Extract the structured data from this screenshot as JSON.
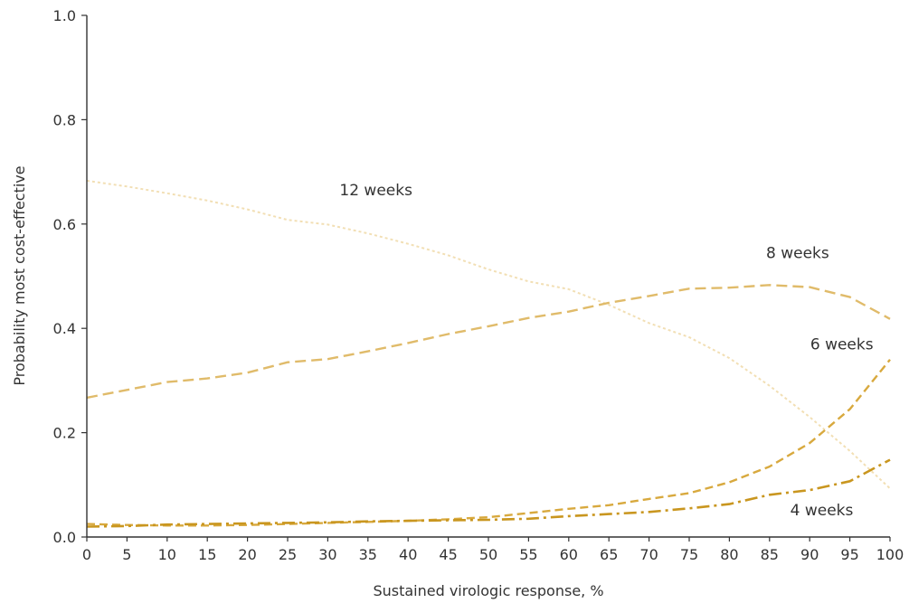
{
  "chart_data": {
    "type": "line",
    "xlabel": "Sustained virologic response, %",
    "ylabel": "Probability most cost-effective",
    "xlim": [
      0,
      100
    ],
    "ylim": [
      0,
      1.0
    ],
    "xticks": [
      "0",
      "5",
      "10",
      "15",
      "20",
      "25",
      "30",
      "35",
      "40",
      "45",
      "50",
      "55",
      "60",
      "65",
      "70",
      "75",
      "80",
      "85",
      "90",
      "95",
      "100"
    ],
    "yticks": [
      "0.0",
      "0.2",
      "0.4",
      "0.6",
      "0.8",
      "1.0"
    ],
    "grid": false,
    "legend": "none",
    "series": [
      {
        "name": "12 weeks",
        "color": "#f2dfb4",
        "x": [
          0,
          5,
          10,
          15,
          20,
          25,
          30,
          35,
          40,
          45,
          50,
          55,
          60,
          65,
          70,
          75,
          80,
          85,
          90,
          95,
          100
        ],
        "y": [
          0.683,
          0.672,
          0.659,
          0.645,
          0.628,
          0.608,
          0.599,
          0.582,
          0.562,
          0.54,
          0.513,
          0.49,
          0.475,
          0.445,
          0.41,
          0.383,
          0.343,
          0.29,
          0.23,
          0.165,
          0.093
        ]
      },
      {
        "name": "8 weeks",
        "color": "#e0bb6a",
        "x": [
          0,
          5,
          10,
          15,
          20,
          25,
          30,
          35,
          40,
          45,
          50,
          55,
          60,
          65,
          70,
          75,
          80,
          85,
          90,
          95,
          100
        ],
        "y": [
          0.267,
          0.282,
          0.297,
          0.304,
          0.315,
          0.335,
          0.341,
          0.356,
          0.372,
          0.389,
          0.404,
          0.42,
          0.432,
          0.449,
          0.462,
          0.476,
          0.478,
          0.483,
          0.479,
          0.46,
          0.418
        ]
      },
      {
        "name": "6 weeks",
        "color": "#d8a93e",
        "x": [
          0,
          5,
          10,
          15,
          20,
          25,
          30,
          35,
          40,
          45,
          50,
          55,
          60,
          65,
          70,
          75,
          80,
          85,
          90,
          95,
          100
        ],
        "y": [
          0.025,
          0.023,
          0.022,
          0.022,
          0.023,
          0.025,
          0.027,
          0.029,
          0.031,
          0.034,
          0.038,
          0.046,
          0.054,
          0.061,
          0.073,
          0.084,
          0.105,
          0.135,
          0.18,
          0.245,
          0.34
        ]
      },
      {
        "name": "4 weeks",
        "color": "#c9961f",
        "x": [
          0,
          5,
          10,
          15,
          20,
          25,
          30,
          35,
          40,
          45,
          50,
          55,
          60,
          65,
          70,
          75,
          80,
          85,
          90,
          95,
          100
        ],
        "y": [
          0.02,
          0.021,
          0.024,
          0.025,
          0.026,
          0.027,
          0.028,
          0.03,
          0.031,
          0.032,
          0.033,
          0.035,
          0.04,
          0.044,
          0.048,
          0.055,
          0.063,
          0.081,
          0.09,
          0.107,
          0.148
        ]
      }
    ],
    "annotations": [
      {
        "text": "12 weeks",
        "x": 36,
        "y": 0.655
      },
      {
        "text": "8 weeks",
        "x": 88.5,
        "y": 0.535
      },
      {
        "text": "6 weeks",
        "x": 94,
        "y": 0.36
      },
      {
        "text": "4 weeks",
        "x": 91.5,
        "y": 0.042
      }
    ]
  }
}
